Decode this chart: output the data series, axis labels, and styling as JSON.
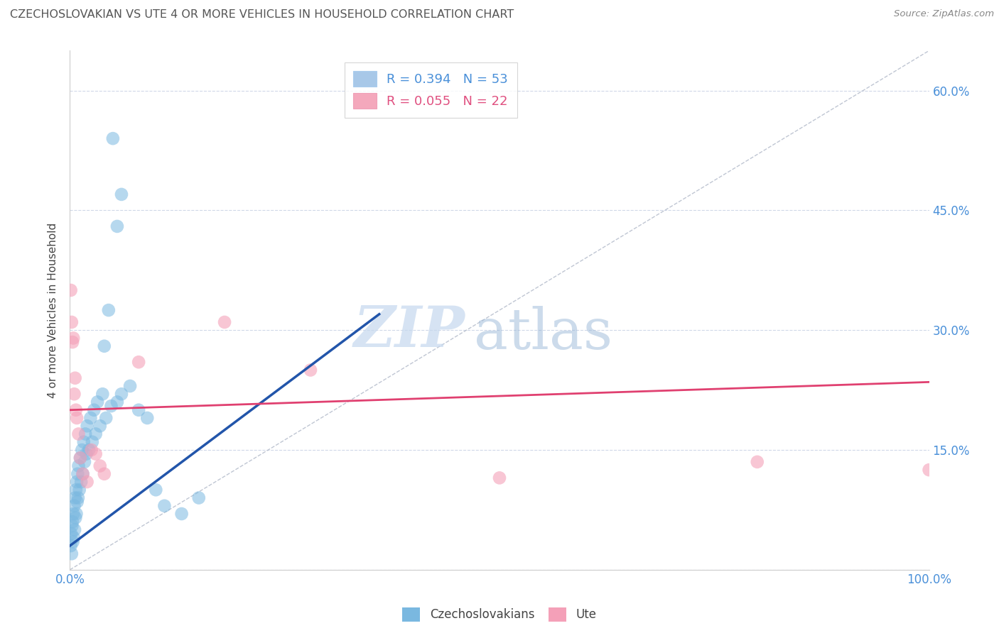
{
  "title": "CZECHOSLOVAKIAN VS UTE 4 OR MORE VEHICLES IN HOUSEHOLD CORRELATION CHART",
  "source_text": "Source: ZipAtlas.com",
  "ylabel": "4 or more Vehicles in Household",
  "xlim": [
    0.0,
    100.0
  ],
  "ylim": [
    0.0,
    65.0
  ],
  "legend_entries": [
    {
      "label": "R = 0.394   N = 53",
      "color": "#a8c8e8"
    },
    {
      "label": "R = 0.055   N = 22",
      "color": "#f4a8bc"
    }
  ],
  "watermark_zip": "ZIP",
  "watermark_atlas": "atlas",
  "blue_color": "#7ab8e0",
  "pink_color": "#f4a0b8",
  "blue_line_color": "#2255aa",
  "pink_line_color": "#e04070",
  "ref_line_color": "#b0b8c8",
  "grid_color": "#d0d8e8",
  "blue_scatter": [
    [
      0.1,
      3.0
    ],
    [
      0.15,
      4.5
    ],
    [
      0.2,
      2.0
    ],
    [
      0.25,
      5.5
    ],
    [
      0.3,
      6.0
    ],
    [
      0.35,
      3.5
    ],
    [
      0.4,
      7.0
    ],
    [
      0.45,
      4.0
    ],
    [
      0.5,
      8.0
    ],
    [
      0.55,
      5.0
    ],
    [
      0.6,
      9.0
    ],
    [
      0.65,
      6.5
    ],
    [
      0.7,
      10.0
    ],
    [
      0.75,
      7.0
    ],
    [
      0.8,
      11.0
    ],
    [
      0.85,
      8.5
    ],
    [
      0.9,
      12.0
    ],
    [
      0.95,
      9.0
    ],
    [
      1.0,
      13.0
    ],
    [
      1.1,
      10.0
    ],
    [
      1.2,
      14.0
    ],
    [
      1.3,
      11.0
    ],
    [
      1.4,
      15.0
    ],
    [
      1.5,
      12.0
    ],
    [
      1.6,
      16.0
    ],
    [
      1.7,
      13.5
    ],
    [
      1.8,
      17.0
    ],
    [
      1.9,
      14.5
    ],
    [
      2.0,
      18.0
    ],
    [
      2.2,
      15.0
    ],
    [
      2.4,
      19.0
    ],
    [
      2.6,
      16.0
    ],
    [
      2.8,
      20.0
    ],
    [
      3.0,
      17.0
    ],
    [
      3.2,
      21.0
    ],
    [
      3.5,
      18.0
    ],
    [
      3.8,
      22.0
    ],
    [
      4.2,
      19.0
    ],
    [
      4.8,
      20.5
    ],
    [
      5.5,
      21.0
    ],
    [
      6.0,
      22.0
    ],
    [
      7.0,
      23.0
    ],
    [
      8.0,
      20.0
    ],
    [
      9.0,
      19.0
    ],
    [
      10.0,
      10.0
    ],
    [
      11.0,
      8.0
    ],
    [
      13.0,
      7.0
    ],
    [
      15.0,
      9.0
    ],
    [
      5.5,
      43.0
    ],
    [
      6.0,
      47.0
    ],
    [
      5.0,
      54.0
    ],
    [
      4.5,
      32.5
    ],
    [
      4.0,
      28.0
    ]
  ],
  "pink_scatter": [
    [
      0.1,
      35.0
    ],
    [
      0.2,
      31.0
    ],
    [
      0.3,
      28.5
    ],
    [
      0.4,
      29.0
    ],
    [
      0.5,
      22.0
    ],
    [
      0.6,
      24.0
    ],
    [
      0.7,
      20.0
    ],
    [
      0.8,
      19.0
    ],
    [
      1.0,
      17.0
    ],
    [
      1.2,
      14.0
    ],
    [
      1.5,
      12.0
    ],
    [
      2.0,
      11.0
    ],
    [
      2.5,
      15.0
    ],
    [
      3.0,
      14.5
    ],
    [
      3.5,
      13.0
    ],
    [
      4.0,
      12.0
    ],
    [
      8.0,
      26.0
    ],
    [
      18.0,
      31.0
    ],
    [
      28.0,
      25.0
    ],
    [
      50.0,
      11.5
    ],
    [
      80.0,
      13.5
    ],
    [
      100.0,
      12.5
    ]
  ],
  "blue_line_x": [
    0.0,
    36.0
  ],
  "blue_line_y": [
    3.0,
    32.0
  ],
  "pink_line_x": [
    0.0,
    100.0
  ],
  "pink_line_y": [
    20.0,
    23.5
  ],
  "ref_line_x": [
    0.0,
    100.0
  ],
  "ref_line_y": [
    0.0,
    65.0
  ]
}
